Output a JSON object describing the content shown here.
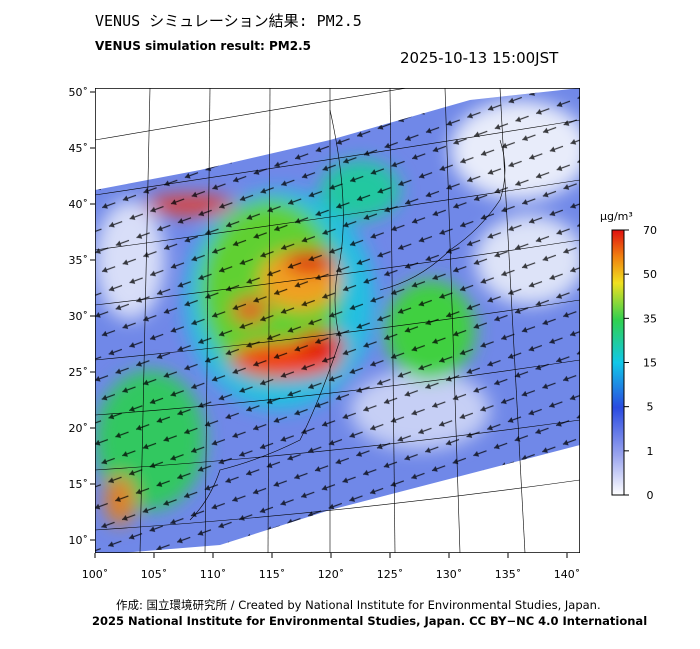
{
  "header": {
    "title_jp": "VENUS シミュレーション結果: PM2.5",
    "title_en": "VENUS simulation result: PM2.5",
    "datetime": "2025-10-13 15:00JST"
  },
  "map": {
    "lat_labels": [
      "50˚",
      "45˚",
      "40˚",
      "35˚",
      "30˚",
      "25˚",
      "20˚",
      "15˚",
      "10˚"
    ],
    "lon_labels": [
      "100˚",
      "105˚",
      "110˚",
      "115˚",
      "120˚",
      "125˚",
      "130˚",
      "135˚",
      "140˚"
    ]
  },
  "colorbar": {
    "unit": "μg/m³",
    "ticks": [
      0,
      1,
      5,
      15,
      35,
      50,
      70
    ]
  },
  "footer": {
    "credit": "作成: 国立環境研究所 / Created by National Institute for Environmental Studies, Japan.",
    "license": "2025 National Institute for Environmental Studies, Japan. CC BY−NC 4.0 International"
  }
}
